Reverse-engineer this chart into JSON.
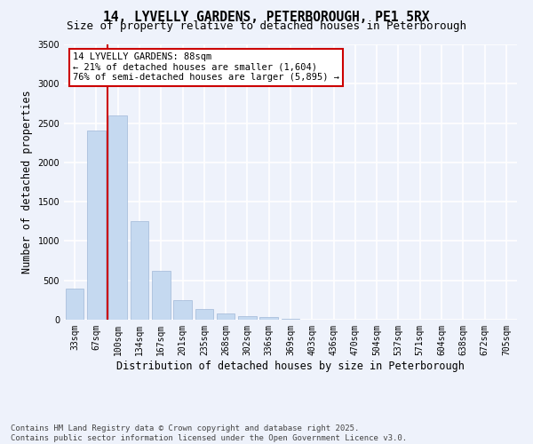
{
  "title_line1": "14, LYVELLY GARDENS, PETERBOROUGH, PE1 5RX",
  "title_line2": "Size of property relative to detached houses in Peterborough",
  "xlabel": "Distribution of detached houses by size in Peterborough",
  "ylabel": "Number of detached properties",
  "categories": [
    "33sqm",
    "67sqm",
    "100sqm",
    "134sqm",
    "167sqm",
    "201sqm",
    "235sqm",
    "268sqm",
    "302sqm",
    "336sqm",
    "369sqm",
    "403sqm",
    "436sqm",
    "470sqm",
    "504sqm",
    "537sqm",
    "571sqm",
    "604sqm",
    "638sqm",
    "672sqm",
    "705sqm"
  ],
  "values": [
    400,
    2400,
    2600,
    1250,
    620,
    250,
    130,
    80,
    50,
    30,
    10,
    0,
    0,
    0,
    0,
    0,
    0,
    0,
    0,
    0,
    0
  ],
  "bar_color": "#c5d9f0",
  "bar_edge_color": "#a0b8d8",
  "vline_color": "#cc0000",
  "annotation_text": "14 LYVELLY GARDENS: 88sqm\n← 21% of detached houses are smaller (1,604)\n76% of semi-detached houses are larger (5,895) →",
  "annotation_box_color": "#cc0000",
  "ylim": [
    0,
    3500
  ],
  "yticks": [
    0,
    500,
    1000,
    1500,
    2000,
    2500,
    3000,
    3500
  ],
  "background_color": "#eef2fb",
  "grid_color": "#ffffff",
  "footer_line1": "Contains HM Land Registry data © Crown copyright and database right 2025.",
  "footer_line2": "Contains public sector information licensed under the Open Government Licence v3.0.",
  "title_fontsize": 10.5,
  "subtitle_fontsize": 9,
  "axis_label_fontsize": 8.5,
  "tick_fontsize": 7,
  "annotation_fontsize": 7.5,
  "footer_fontsize": 6.5
}
